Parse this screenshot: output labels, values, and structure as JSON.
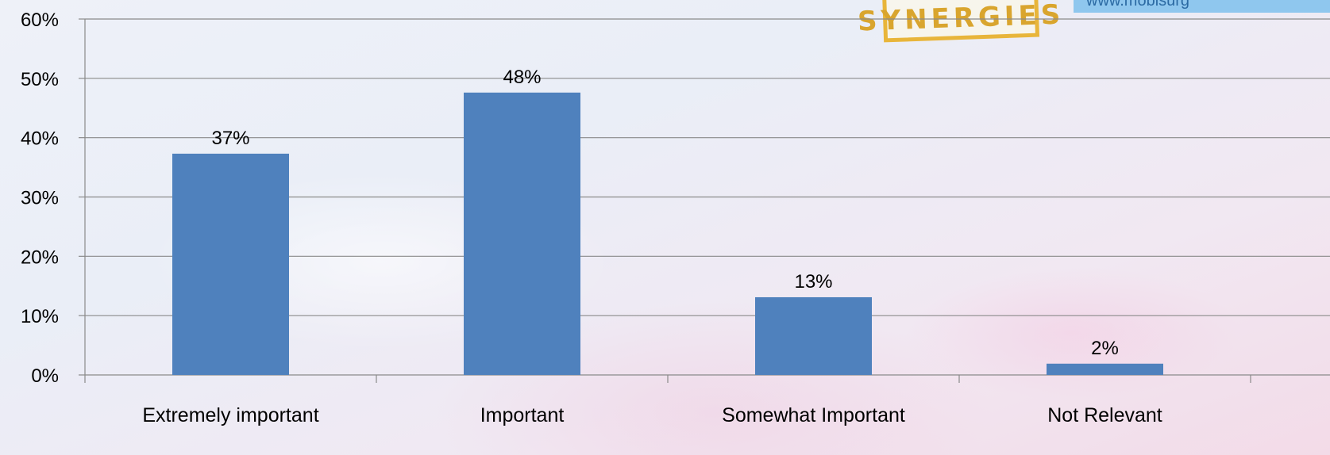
{
  "branding": {
    "logo_text": "SYNERGIES",
    "url_fragment": "www.mobisurg",
    "logo_color": "#e8b53a",
    "url_bg_color": "#8fc7ee"
  },
  "chart_data": {
    "type": "bar",
    "categories": [
      "Extremely important",
      "Important",
      "Somewhat Important",
      "Not Relevant"
    ],
    "values": [
      37,
      48,
      13,
      2
    ],
    "data_labels": [
      "37%",
      "48%",
      "13%",
      "2%"
    ],
    "bar_values_precise": [
      37.3,
      47.6,
      13.1,
      1.9
    ],
    "y_ticks": [
      "0%",
      "10%",
      "20%",
      "30%",
      "40%",
      "50%",
      "60%"
    ],
    "ylim": [
      0,
      60
    ],
    "ystep": 10,
    "grid": true,
    "legend": "none",
    "bar_color": "#4f81bd",
    "title": "",
    "xlabel": "",
    "ylabel": ""
  }
}
